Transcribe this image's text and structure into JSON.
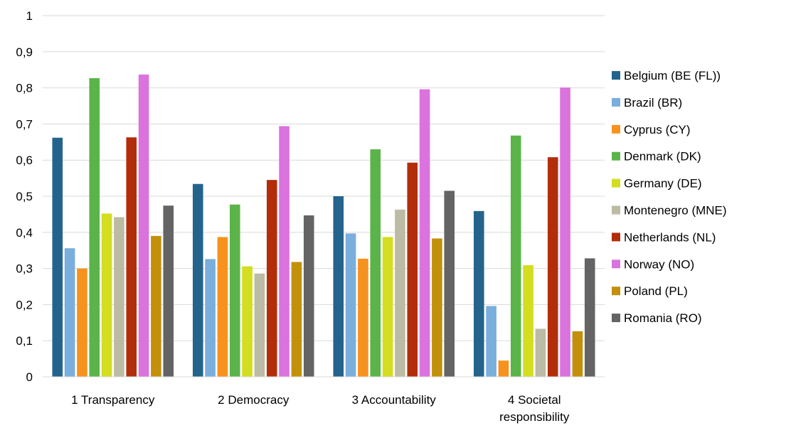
{
  "chart_data": {
    "type": "bar",
    "title": "",
    "xlabel": "",
    "ylabel": "",
    "ylim": [
      0,
      1
    ],
    "yticks": [
      "0",
      "0,1",
      "0,2",
      "0,3",
      "0,4",
      "0,5",
      "0,6",
      "0,7",
      "0,8",
      "0,9",
      "1"
    ],
    "grid": true,
    "legend_position": "right",
    "categories": [
      [
        "1 Transparency"
      ],
      [
        "2 Democracy"
      ],
      [
        "3 Accountability"
      ],
      [
        "4 Societal",
        "responsibility"
      ]
    ],
    "series": [
      {
        "name": "Belgium (BE (FL))",
        "color": "#24648c",
        "values": [
          0.662,
          0.534,
          0.5,
          0.459
        ]
      },
      {
        "name": "Brazil (BR)",
        "color": "#7aaedc",
        "values": [
          0.356,
          0.326,
          0.397,
          0.196
        ]
      },
      {
        "name": "Cyprus (CY)",
        "color": "#f7921e",
        "values": [
          0.3,
          0.387,
          0.327,
          0.045
        ]
      },
      {
        "name": "Denmark (DK)",
        "color": "#5bb449",
        "values": [
          0.827,
          0.477,
          0.63,
          0.668
        ]
      },
      {
        "name": "Germany (DE)",
        "color": "#d4dd1f",
        "values": [
          0.452,
          0.306,
          0.387,
          0.309
        ]
      },
      {
        "name": "Montenegro (MNE)",
        "color": "#bcbba3",
        "values": [
          0.442,
          0.286,
          0.463,
          0.133
        ]
      },
      {
        "name": "Netherlands (NL)",
        "color": "#b22e0b",
        "values": [
          0.663,
          0.545,
          0.593,
          0.608
        ]
      },
      {
        "name": "Norway (NO)",
        "color": "#da73dd",
        "values": [
          0.837,
          0.694,
          0.796,
          0.801
        ]
      },
      {
        "name": "Poland (PL)",
        "color": "#c2900a",
        "values": [
          0.39,
          0.318,
          0.383,
          0.126
        ]
      },
      {
        "name": "Romania (RO)",
        "color": "#646464",
        "values": [
          0.474,
          0.447,
          0.515,
          0.328
        ]
      }
    ]
  }
}
